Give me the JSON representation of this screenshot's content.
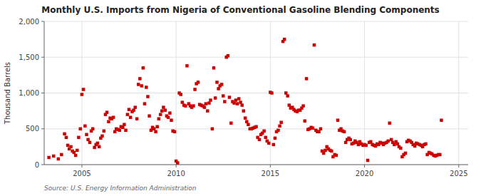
{
  "chart_data": {
    "type": "scatter",
    "title": "Monthly U.S. Imports from Nigeria of Conventional Gasoline Blending Components",
    "ylabel": "Thousand Barrels",
    "annotations": [
      "Source: U.S. Energy Information Administration"
    ],
    "color": "#CC0000",
    "marker": "square",
    "grid": true,
    "xlim": [
      2003.0,
      2025.5
    ],
    "ylim": [
      0,
      2000
    ],
    "xticks": [
      2005,
      2010,
      2015,
      2020,
      2025
    ],
    "yticks": [
      0,
      500,
      {
        "value": 1000,
        "label": "1,000"
      },
      {
        "value": 1500,
        "label": "1,500"
      },
      {
        "value": 2000,
        "label": "2,000"
      }
    ],
    "x": [
      2003.25,
      2003.5,
      2003.75,
      2003.92,
      2004.08,
      2004.17,
      2004.25,
      2004.33,
      2004.42,
      2004.5,
      2004.58,
      2004.67,
      2004.75,
      2004.83,
      2004.92,
      2005.0,
      2005.08,
      2005.17,
      2005.25,
      2005.33,
      2005.42,
      2005.5,
      2005.58,
      2005.67,
      2005.75,
      2005.83,
      2005.92,
      2006.0,
      2006.08,
      2006.17,
      2006.25,
      2006.33,
      2006.42,
      2006.5,
      2006.58,
      2006.67,
      2006.75,
      2006.83,
      2006.92,
      2007.0,
      2007.08,
      2007.17,
      2007.25,
      2007.33,
      2007.42,
      2007.5,
      2007.58,
      2007.67,
      2007.75,
      2007.83,
      2007.92,
      2008.0,
      2008.08,
      2008.17,
      2008.25,
      2008.33,
      2008.42,
      2008.5,
      2008.58,
      2008.67,
      2008.75,
      2008.83,
      2008.92,
      2009.0,
      2009.08,
      2009.17,
      2009.25,
      2009.33,
      2009.42,
      2009.5,
      2009.58,
      2009.67,
      2009.75,
      2009.83,
      2009.92,
      2010.0,
      2010.08,
      2010.17,
      2010.25,
      2010.33,
      2010.42,
      2010.5,
      2010.58,
      2010.67,
      2010.75,
      2010.83,
      2010.92,
      2011.0,
      2011.08,
      2011.17,
      2011.25,
      2011.33,
      2011.42,
      2011.5,
      2011.58,
      2011.67,
      2011.75,
      2011.83,
      2011.92,
      2012.0,
      2012.08,
      2012.17,
      2012.25,
      2012.33,
      2012.42,
      2012.5,
      2012.58,
      2012.67,
      2012.75,
      2012.83,
      2012.92,
      2013.0,
      2013.08,
      2013.17,
      2013.25,
      2013.33,
      2013.42,
      2013.5,
      2013.58,
      2013.67,
      2013.75,
      2013.83,
      2013.92,
      2014.0,
      2014.08,
      2014.17,
      2014.25,
      2014.33,
      2014.42,
      2014.5,
      2014.58,
      2014.67,
      2014.75,
      2014.83,
      2014.92,
      2015.0,
      2015.08,
      2015.17,
      2015.25,
      2015.33,
      2015.42,
      2015.5,
      2015.58,
      2015.67,
      2015.75,
      2015.83,
      2015.92,
      2016.0,
      2016.08,
      2016.17,
      2016.25,
      2016.33,
      2016.42,
      2016.5,
      2016.58,
      2016.67,
      2016.75,
      2016.83,
      2016.92,
      2017.0,
      2017.08,
      2017.17,
      2017.25,
      2017.33,
      2017.42,
      2017.5,
      2017.58,
      2017.67,
      2017.75,
      2017.83,
      2017.92,
      2018.0,
      2018.08,
      2018.17,
      2018.25,
      2018.33,
      2018.42,
      2018.5,
      2018.58,
      2018.67,
      2018.75,
      2018.83,
      2018.92,
      2019.0,
      2019.08,
      2019.17,
      2019.25,
      2019.33,
      2019.42,
      2019.5,
      2019.58,
      2019.67,
      2019.75,
      2019.83,
      2019.92,
      2020.0,
      2020.08,
      2020.17,
      2020.25,
      2020.33,
      2020.42,
      2020.5,
      2020.58,
      2020.67,
      2020.75,
      2020.83,
      2020.92,
      2021.0,
      2021.08,
      2021.17,
      2021.25,
      2021.33,
      2021.42,
      2021.5,
      2021.58,
      2021.67,
      2021.75,
      2021.83,
      2021.92,
      2022.0,
      2022.08,
      2022.17,
      2022.25,
      2022.33,
      2022.42,
      2022.5,
      2022.58,
      2022.67,
      2022.75,
      2022.83,
      2022.92,
      2023.0,
      2023.08,
      2023.17,
      2023.25,
      2023.33,
      2023.42,
      2023.5,
      2023.58,
      2023.67,
      2023.75,
      2023.83,
      2023.92,
      2024.0,
      2024.08
    ],
    "values": [
      100,
      120,
      80,
      140,
      430,
      380,
      270,
      220,
      250,
      190,
      170,
      130,
      200,
      380,
      500,
      980,
      1050,
      540,
      420,
      350,
      310,
      470,
      500,
      240,
      280,
      300,
      250,
      370,
      400,
      470,
      700,
      730,
      600,
      650,
      640,
      660,
      460,
      500,
      490,
      480,
      530,
      520,
      560,
      480,
      700,
      770,
      660,
      740,
      760,
      800,
      640,
      1120,
      1200,
      1100,
      1350,
      850,
      1080,
      950,
      680,
      480,
      520,
      500,
      460,
      530,
      640,
      700,
      750,
      800,
      760,
      680,
      660,
      720,
      620,
      470,
      460,
      50,
      25,
      1000,
      980,
      870,
      830,
      820,
      1380,
      850,
      820,
      800,
      820,
      1050,
      1130,
      1150,
      840,
      830,
      820,
      800,
      850,
      750,
      860,
      900,
      500,
      1350,
      930,
      1150,
      1060,
      1100,
      1120,
      960,
      880,
      1500,
      1520,
      940,
      580,
      880,
      860,
      900,
      850,
      920,
      870,
      830,
      750,
      650,
      600,
      560,
      500,
      500,
      510,
      520,
      530,
      380,
      350,
      420,
      440,
      470,
      380,
      330,
      300,
      1010,
      1000,
      280,
      370,
      460,
      480,
      540,
      590,
      1720,
      1750,
      1000,
      960,
      830,
      790,
      800,
      770,
      750,
      740,
      760,
      760,
      790,
      820,
      610,
      1200,
      490,
      500,
      520,
      510,
      1670,
      480,
      460,
      460,
      500,
      190,
      160,
      200,
      250,
      220,
      200,
      190,
      110,
      140,
      130,
      620,
      480,
      500,
      470,
      460,
      310,
      350,
      370,
      350,
      290,
      300,
      330,
      310,
      280,
      320,
      290,
      270,
      280,
      270,
      60,
      310,
      320,
      280,
      270,
      260,
      290,
      280,
      310,
      300,
      280,
      300,
      310,
      330,
      580,
      350,
      310,
      280,
      320,
      290,
      250,
      230,
      110,
      140,
      160,
      320,
      340,
      330,
      310,
      280,
      260,
      300,
      290,
      280,
      270,
      250,
      280,
      290,
      140,
      170,
      160,
      150,
      130,
      120,
      130,
      140,
      140,
      620
    ]
  }
}
